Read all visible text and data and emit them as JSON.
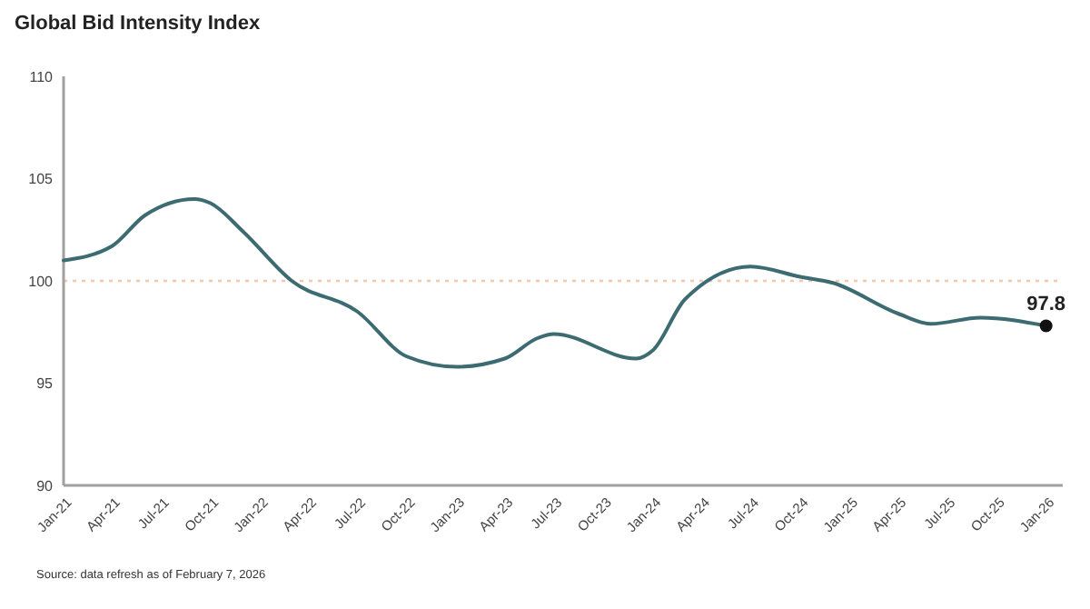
{
  "chart_data": {
    "type": "line",
    "title": "Global Bid Intensity Index",
    "annotations": [
      {
        "text": "97.8",
        "x": "2026-01",
        "y": 97.8
      },
      "Source: data refresh as of February 7, 2026"
    ],
    "series": [
      {
        "color": "#3d6b72",
        "marker": "none",
        "line_style": "solid",
        "x": [
          "2021-01",
          "2021-04",
          "2021-06",
          "2021-09",
          "2021-10",
          "2021-12",
          "2022-03",
          "2022-07",
          "2022-10",
          "2023-01",
          "2023-04",
          "2023-06",
          "2023-07",
          "2023-12",
          "2024-01",
          "2024-03",
          "2024-07",
          "2024-10",
          "2024-12",
          "2025-04",
          "2025-06",
          "2025-09",
          "2026-01"
        ],
        "values": [
          101.0,
          101.7,
          103.2,
          104.0,
          103.8,
          102.4,
          100.0,
          98.5,
          96.3,
          95.8,
          96.2,
          97.2,
          97.4,
          96.2,
          96.6,
          99.1,
          100.7,
          100.2,
          99.9,
          98.4,
          97.9,
          98.2,
          97.8
        ]
      },
      {
        "type": "scatter",
        "color": "#111111",
        "marker": "circle",
        "x": [
          "2026-01"
        ],
        "values": [
          97.8
        ]
      }
    ],
    "xlim": [
      "2021-01",
      "2026-02"
    ],
    "xticks": [
      {
        "value": "2021-01",
        "label": "Jan-21"
      },
      {
        "value": "2021-04",
        "label": "Apr-21"
      },
      {
        "value": "2021-07",
        "label": "Jul-21"
      },
      {
        "value": "2021-10",
        "label": "Oct-21"
      },
      {
        "value": "2022-01",
        "label": "Jan-22"
      },
      {
        "value": "2022-04",
        "label": "Apr-22"
      },
      {
        "value": "2022-07",
        "label": "Jul-22"
      },
      {
        "value": "2022-10",
        "label": "Oct-22"
      },
      {
        "value": "2023-01",
        "label": "Jan-23"
      },
      {
        "value": "2023-04",
        "label": "Apr-23"
      },
      {
        "value": "2023-07",
        "label": "Jul-23"
      },
      {
        "value": "2023-10",
        "label": "Oct-23"
      },
      {
        "value": "2024-01",
        "label": "Jan-24"
      },
      {
        "value": "2024-04",
        "label": "Apr-24"
      },
      {
        "value": "2024-07",
        "label": "Jul-24"
      },
      {
        "value": "2024-10",
        "label": "Oct-24"
      },
      {
        "value": "2025-01",
        "label": "Jan-25"
      },
      {
        "value": "2025-04",
        "label": "Apr-25"
      },
      {
        "value": "2025-07",
        "label": "Jul-25"
      },
      {
        "value": "2025-10",
        "label": "Oct-25"
      },
      {
        "value": "2026-01",
        "label": "Jan-26"
      }
    ],
    "ylim": [
      90,
      110
    ],
    "yticks": [
      90,
      95,
      100,
      105,
      110
    ],
    "ref_lines": [
      {
        "axis": "y",
        "value": 100,
        "color": "#f0c8b0",
        "line_style": "dotted"
      }
    ],
    "grid": false
  }
}
